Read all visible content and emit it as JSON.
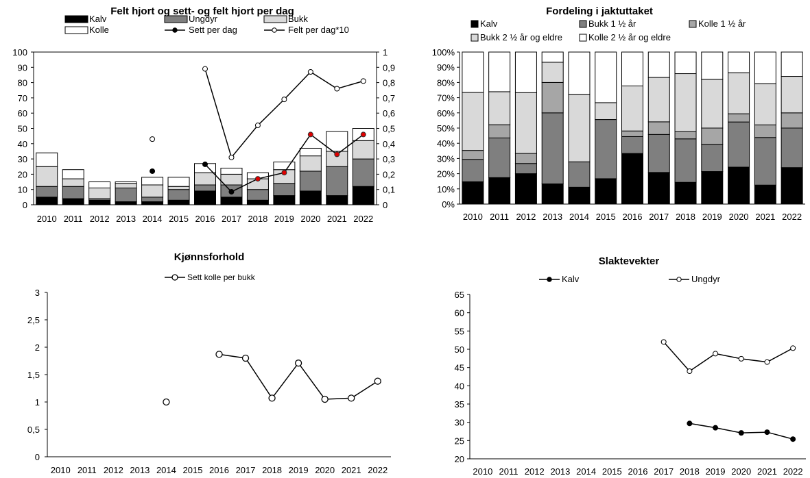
{
  "colors": {
    "kalv": "#000000",
    "ungdyr": "#7f7f7f",
    "bukk": "#d9d9d9",
    "kolle": "#ffffff",
    "kolle1": "#a6a6a6",
    "red_marker": "#e00000"
  },
  "chart_data": [
    {
      "type": "bar",
      "stacked": true,
      "title": "Felt hjort og sett- og felt hjort per dag",
      "categories": [
        "2010",
        "2011",
        "2012",
        "2013",
        "2014",
        "2015",
        "2016",
        "2017",
        "2018",
        "2019",
        "2020",
        "2021",
        "2022"
      ],
      "ylim": [
        0,
        100
      ],
      "yticks": [
        "0",
        "10",
        "20",
        "30",
        "40",
        "50",
        "60",
        "70",
        "80",
        "90",
        "100"
      ],
      "y2lim": [
        0,
        1
      ],
      "y2ticks": [
        "0",
        "0,1",
        "0,2",
        "0,3",
        "0,4",
        "0,5",
        "0,6",
        "0,7",
        "0,8",
        "0,9",
        "1"
      ],
      "legend": [
        "Kalv",
        "Ungdyr",
        "Bukk",
        "Kolle",
        "Sett per dag",
        "Felt per dag*10"
      ],
      "series": [
        {
          "name": "Kalv",
          "values": [
            5,
            4,
            3,
            2,
            2,
            3,
            9,
            5,
            3,
            6,
            9,
            6,
            12
          ]
        },
        {
          "name": "Ungdyr",
          "values": [
            7,
            8,
            1,
            9,
            3,
            7,
            4,
            8,
            7,
            8,
            13,
            19,
            18
          ]
        },
        {
          "name": "Bukk",
          "values": [
            13,
            5,
            7,
            3,
            8,
            2,
            8,
            7,
            7,
            9,
            10,
            10,
            12
          ]
        },
        {
          "name": "Kolle",
          "values": [
            9,
            6,
            4,
            1,
            5,
            6,
            6,
            4,
            4,
            5,
            5,
            13,
            8
          ]
        }
      ],
      "line_series": [
        {
          "name": "Sett per dag",
          "values": [
            null,
            null,
            null,
            null,
            0.22,
            null,
            0.265,
            0.085,
            0.17,
            0.21,
            0.46,
            0.33,
            0.46
          ]
        },
        {
          "name": "Felt per dag*10",
          "values": [
            null,
            null,
            null,
            null,
            0.43,
            null,
            0.89,
            0.31,
            0.52,
            0.69,
            0.87,
            0.76,
            0.81
          ]
        }
      ]
    },
    {
      "type": "bar",
      "stacked": true,
      "percent": true,
      "title": "Fordeling i jaktuttaket",
      "categories": [
        "2010",
        "2011",
        "2012",
        "2013",
        "2014",
        "2015",
        "2016",
        "2017",
        "2018",
        "2019",
        "2020",
        "2021",
        "2022"
      ],
      "ylim": [
        0,
        100
      ],
      "yticks": [
        "0%",
        "10%",
        "20%",
        "30%",
        "40%",
        "50%",
        "60%",
        "70%",
        "80%",
        "90%",
        "100%"
      ],
      "legend": [
        "Kalv",
        "Bukk 1 ½ år",
        "Kolle 1 ½ år",
        "Bukk 2 ½ år og eldre",
        "Kolle 2 ½ år og eldre"
      ],
      "series": [
        {
          "name": "Kalv",
          "values": [
            14.7,
            17.4,
            20.0,
            13.3,
            11.1,
            16.7,
            33.3,
            20.8,
            14.3,
            21.4,
            24.3,
            12.5,
            24.0
          ]
        },
        {
          "name": "Bukk 1 ½ år",
          "values": [
            14.7,
            26.1,
            6.7,
            46.7,
            16.7,
            38.9,
            11.1,
            25.0,
            28.6,
            17.9,
            29.7,
            31.3,
            26.0
          ]
        },
        {
          "name": "Kolle 1 ½ år",
          "values": [
            5.9,
            8.7,
            6.6,
            20.0,
            0.0,
            0.0,
            3.7,
            8.3,
            4.8,
            10.7,
            5.4,
            8.3,
            10.0
          ]
        },
        {
          "name": "Bukk 2 ½ år og eldre",
          "values": [
            38.2,
            21.7,
            40.0,
            13.3,
            44.4,
            11.1,
            29.6,
            29.2,
            38.1,
            32.1,
            27.0,
            27.1,
            24.0
          ]
        },
        {
          "name": "Kolle 2 ½ år og eldre",
          "values": [
            26.5,
            26.1,
            26.7,
            6.7,
            27.8,
            33.3,
            22.3,
            16.7,
            14.2,
            17.9,
            13.6,
            20.8,
            16.0
          ]
        }
      ]
    },
    {
      "type": "line",
      "title": "Kjønnsforhold",
      "categories": [
        "2010",
        "2011",
        "2012",
        "2013",
        "2014",
        "2015",
        "2016",
        "2017",
        "2018",
        "2019",
        "2020",
        "2021",
        "2022"
      ],
      "ylim": [
        0,
        3
      ],
      "yticks": [
        "0",
        "0,5",
        "1",
        "1,5",
        "2",
        "2,5",
        "3"
      ],
      "legend": [
        "Sett kolle per bukk"
      ],
      "series": [
        {
          "name": "Sett kolle per bukk",
          "values": [
            null,
            null,
            null,
            null,
            1.0,
            null,
            1.87,
            1.8,
            1.07,
            1.71,
            1.05,
            1.07,
            1.38
          ]
        }
      ]
    },
    {
      "type": "line",
      "title": "Slaktevekter",
      "categories": [
        "2010",
        "2011",
        "2012",
        "2013",
        "2014",
        "2015",
        "2016",
        "2017",
        "2018",
        "2019",
        "2020",
        "2021",
        "2022"
      ],
      "ylim": [
        20,
        65
      ],
      "yticks": [
        "20",
        "25",
        "30",
        "35",
        "40",
        "45",
        "50",
        "55",
        "60",
        "65"
      ],
      "legend": [
        "Kalv",
        "Ungdyr"
      ],
      "series": [
        {
          "name": "Kalv",
          "values": [
            null,
            null,
            null,
            null,
            null,
            null,
            null,
            null,
            29.7,
            28.5,
            27.1,
            27.3,
            25.4
          ]
        },
        {
          "name": "Ungdyr",
          "values": [
            null,
            null,
            null,
            null,
            null,
            null,
            null,
            52.0,
            44.0,
            48.8,
            47.4,
            46.5,
            50.3
          ]
        }
      ]
    }
  ]
}
